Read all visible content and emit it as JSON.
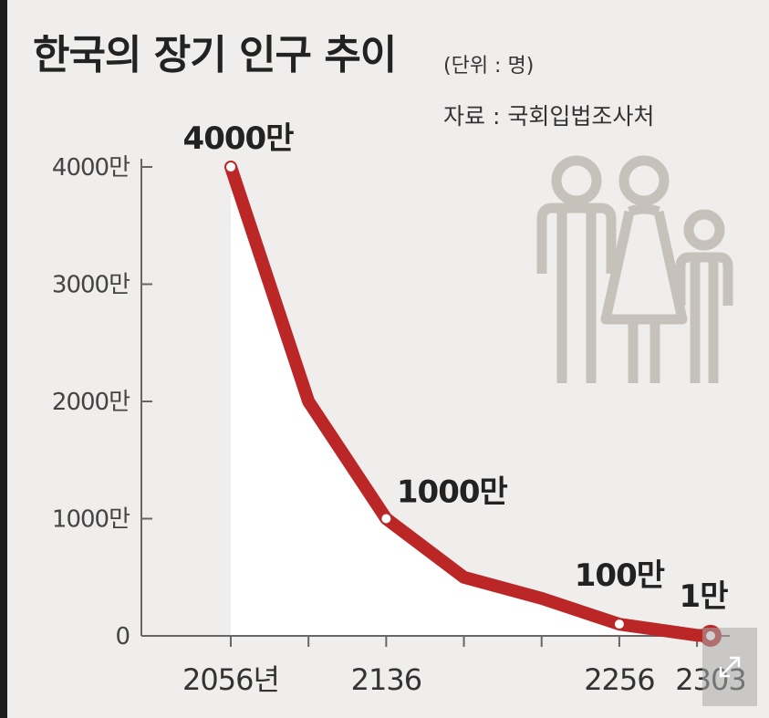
{
  "title": "한국의 장기 인구 추이",
  "unit": "(단위 : 명)",
  "source": "자료 : 국회입법조사처",
  "colors": {
    "line": "#bb2727",
    "axis": "#666666",
    "icon": "#c6c1bb",
    "background": "#f0eeec",
    "area": "#ffffff"
  },
  "icons": [
    "family-icon",
    "expand-icon"
  ],
  "chart_data": {
    "type": "line",
    "title": "한국의 장기 인구 추이",
    "unit": "(단위 : 명)",
    "x": [
      2056,
      2096,
      2136,
      2176,
      2216,
      2256,
      2296,
      2303
    ],
    "x_ticks": [
      2056,
      2136,
      2256,
      2303
    ],
    "x_tick_labels": [
      "2056년",
      "2136",
      "2256",
      "2303"
    ],
    "y_ticks": [
      0,
      1000,
      2000,
      3000,
      4000
    ],
    "y_tick_labels": [
      "0",
      "1000만",
      "2000만",
      "3000만",
      "4000만"
    ],
    "ylim": [
      0,
      4000
    ],
    "y_unit": "만",
    "series": [
      {
        "values": [
          4000,
          2000,
          1000,
          500,
          320,
          100,
          5,
          1
        ]
      }
    ],
    "data_labels": [
      {
        "x": 2056,
        "text": "4000만"
      },
      {
        "x": 2136,
        "text": "1000만"
      },
      {
        "x": 2256,
        "text": "100만"
      },
      {
        "x": 2303,
        "text": "1만"
      }
    ],
    "grid": false
  }
}
